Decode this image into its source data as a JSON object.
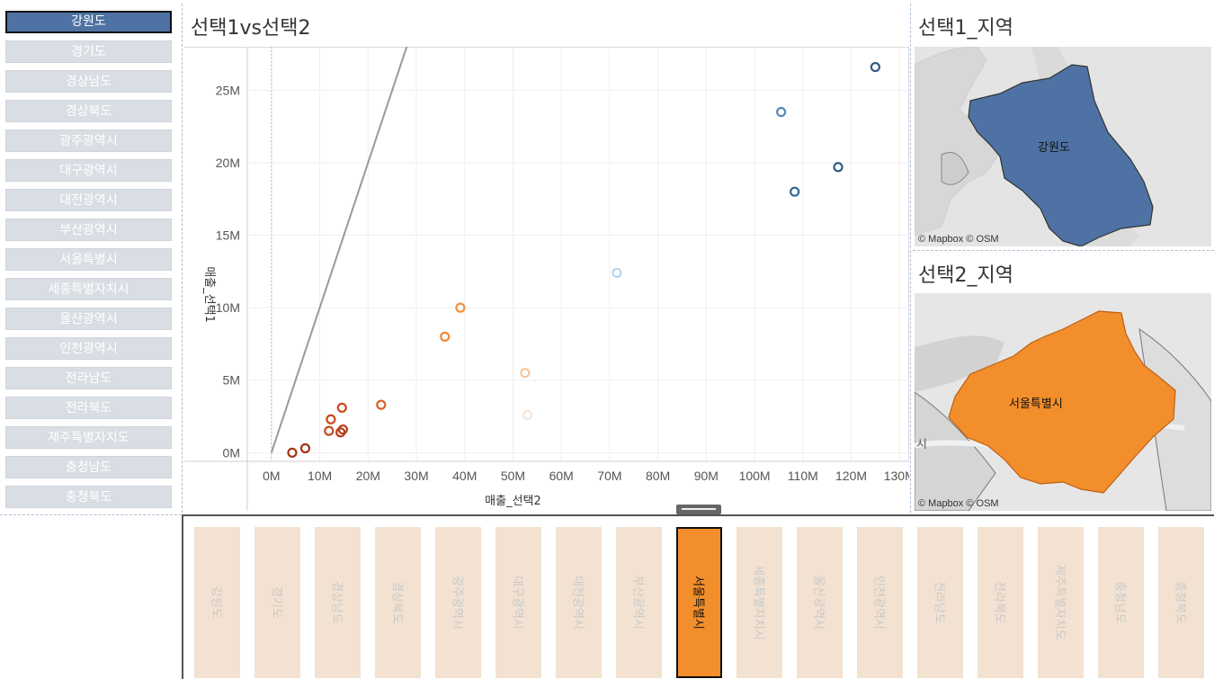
{
  "regions": [
    {
      "label": "강원도",
      "selected": true
    },
    {
      "label": "경기도"
    },
    {
      "label": "경상남도"
    },
    {
      "label": "경상북도"
    },
    {
      "label": "광주광역시"
    },
    {
      "label": "대구광역시"
    },
    {
      "label": "대전광역시"
    },
    {
      "label": "부산광역시"
    },
    {
      "label": "서울특별시"
    },
    {
      "label": "세종특별자치시"
    },
    {
      "label": "울산광역시"
    },
    {
      "label": "인천광역시"
    },
    {
      "label": "전라남도"
    },
    {
      "label": "전라북도"
    },
    {
      "label": "제주특별자치도"
    },
    {
      "label": "충청남도"
    },
    {
      "label": "충청북도"
    }
  ],
  "bottom_regions": [
    {
      "label": "강원도"
    },
    {
      "label": "경기도"
    },
    {
      "label": "경상남도"
    },
    {
      "label": "경상북도"
    },
    {
      "label": "광주광역시"
    },
    {
      "label": "대구광역시"
    },
    {
      "label": "대전광역시"
    },
    {
      "label": "부산광역시"
    },
    {
      "label": "서울특별시",
      "selected": true
    },
    {
      "label": "세종특별자치시"
    },
    {
      "label": "울산광역시"
    },
    {
      "label": "인천광역시"
    },
    {
      "label": "전라남도"
    },
    {
      "label": "전라북도"
    },
    {
      "label": "제주특별자치도"
    },
    {
      "label": "충청남도"
    },
    {
      "label": "충청북도"
    }
  ],
  "scatter": {
    "title": "선택1vs선택2"
  },
  "map1": {
    "title": "선택1_지역",
    "region_label": "강원도",
    "credit": "© Mapbox © OSM",
    "fill_color": "#4e72a3"
  },
  "map2": {
    "title": "선택2_지역",
    "region_label": "서울특별시",
    "credit": "© Mapbox © OSM",
    "fill_color": "#f28e2b",
    "edge_label": "시"
  },
  "chart_data": {
    "type": "scatter",
    "title": "선택1vs선택2",
    "xlabel": "매출_선택2",
    "ylabel": "매출_선택1",
    "xlim": [
      -5,
      132
    ],
    "ylim": [
      -0.6,
      28
    ],
    "x_ticks": [
      {
        "value": 0,
        "label": "0M"
      },
      {
        "value": 10,
        "label": "10M"
      },
      {
        "value": 20,
        "label": "20M"
      },
      {
        "value": 30,
        "label": "30M"
      },
      {
        "value": 40,
        "label": "40M"
      },
      {
        "value": 50,
        "label": "50M"
      },
      {
        "value": 60,
        "label": "60M"
      },
      {
        "value": 70,
        "label": "70M"
      },
      {
        "value": 80,
        "label": "80M"
      },
      {
        "value": 90,
        "label": "90M"
      },
      {
        "value": 100,
        "label": "100M"
      },
      {
        "value": 110,
        "label": "110M"
      },
      {
        "value": 120,
        "label": "120M"
      },
      {
        "value": 130,
        "label": "130M"
      }
    ],
    "y_ticks": [
      {
        "value": 0,
        "label": "0M"
      },
      {
        "value": 5,
        "label": "5M"
      },
      {
        "value": 10,
        "label": "10M"
      },
      {
        "value": 15,
        "label": "15M"
      },
      {
        "value": 20,
        "label": "20M"
      },
      {
        "value": 25,
        "label": "25M"
      }
    ],
    "points": [
      {
        "x": 125,
        "y": 26.6,
        "color": "#2f5b85"
      },
      {
        "x": 105.5,
        "y": 23.5,
        "color": "#5b86b3"
      },
      {
        "x": 117.3,
        "y": 19.7,
        "color": "#2f5b85"
      },
      {
        "x": 108.3,
        "y": 18.0,
        "color": "#356896"
      },
      {
        "x": 71.5,
        "y": 12.4,
        "color": "#b7d3ea"
      },
      {
        "x": 39.1,
        "y": 10.0,
        "color": "#f0913f"
      },
      {
        "x": 35.9,
        "y": 8.0,
        "color": "#ee8a38"
      },
      {
        "x": 52.5,
        "y": 5.5,
        "color": "#f6c6a0"
      },
      {
        "x": 53.0,
        "y": 2.6,
        "color": "#f5e5d8"
      },
      {
        "x": 22.7,
        "y": 3.3,
        "color": "#d9622b"
      },
      {
        "x": 14.6,
        "y": 3.1,
        "color": "#c84b1e"
      },
      {
        "x": 12.3,
        "y": 2.3,
        "color": "#c84b1e"
      },
      {
        "x": 14.8,
        "y": 1.6,
        "color": "#b63e18"
      },
      {
        "x": 11.9,
        "y": 1.5,
        "color": "#c84b1e"
      },
      {
        "x": 14.3,
        "y": 1.4,
        "color": "#b63e18"
      },
      {
        "x": 7.0,
        "y": 0.3,
        "color": "#a33514"
      },
      {
        "x": 4.3,
        "y": 0.0,
        "color": "#a33514"
      }
    ],
    "reference_line": {
      "x1": 0,
      "y1": 0,
      "x2": 28,
      "y2": 28,
      "color": "#999999"
    },
    "grid": true
  }
}
